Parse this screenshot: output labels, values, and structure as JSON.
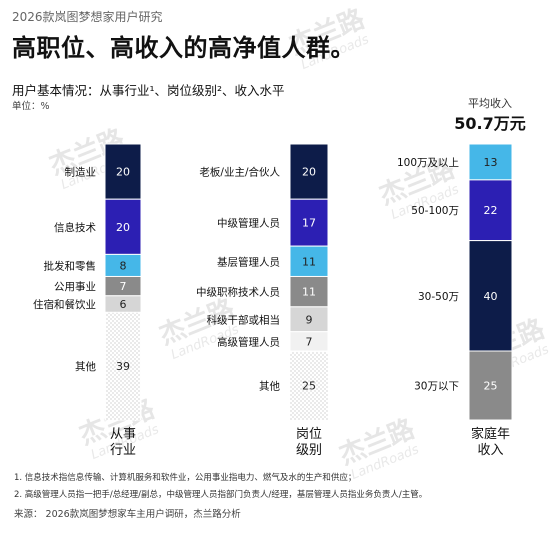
{
  "header": {
    "supertitle": "2026款岚图梦想家用户研究",
    "headline": "高职位、高收入的高净值人群。",
    "subtitle": "用户基本情况：从事行业¹、岗位级别²、收入水平",
    "unit": "单位：%"
  },
  "average": {
    "label": "平均收入",
    "value": "50.7万元"
  },
  "watermark": {
    "brand": "杰兰路",
    "sub": "LandRoads"
  },
  "colors": {
    "navy": "#0d1c49",
    "indigo": "#2c1fb3",
    "sky": "#45b7e8",
    "gray_dark": "#8a8a8a",
    "gray_light": "#d6d6d6",
    "gray_faint": "#f1f1f1",
    "dotted": "#ffffff"
  },
  "chart_data": [
    {
      "type": "bar",
      "stacked": true,
      "category": [
        "从事",
        "行业"
      ],
      "segments": [
        {
          "label": "制造业",
          "value": 20,
          "color": "navy"
        },
        {
          "label": "信息技术",
          "value": 20,
          "color": "indigo"
        },
        {
          "label": "批发和零售",
          "value": 8,
          "color": "sky"
        },
        {
          "label": "公用事业",
          "value": 7,
          "color": "gray_dark"
        },
        {
          "label": "住宿和餐饮业",
          "value": 6,
          "color": "gray_light"
        },
        {
          "label": "其他",
          "value": 39,
          "color": "dotted"
        }
      ]
    },
    {
      "type": "bar",
      "stacked": true,
      "category": [
        "岗位",
        "级别"
      ],
      "segments": [
        {
          "label": "老板/业主/合伙人",
          "value": 20,
          "color": "navy"
        },
        {
          "label": "中级管理人员",
          "value": 17,
          "color": "indigo"
        },
        {
          "label": "基层管理人员",
          "value": 11,
          "color": "sky"
        },
        {
          "label": "中级职称技术人员",
          "value": 11,
          "color": "gray_dark"
        },
        {
          "label": "科级干部或相当",
          "value": 9,
          "color": "gray_light"
        },
        {
          "label": "高级管理人员",
          "value": 7,
          "color": "gray_faint"
        },
        {
          "label": "其他",
          "value": 25,
          "color": "dotted"
        }
      ]
    },
    {
      "type": "bar",
      "stacked": true,
      "category": [
        "家庭年",
        "收入"
      ],
      "segments": [
        {
          "label": "100万及以上",
          "value": 13,
          "color": "sky"
        },
        {
          "label": "50-100万",
          "value": 22,
          "color": "indigo"
        },
        {
          "label": "30-50万",
          "value": 40,
          "color": "navy"
        },
        {
          "label": "30万以下",
          "value": 25,
          "color": "gray_dark"
        }
      ]
    }
  ],
  "footnotes": {
    "fn1": "1.   信息技术指信息传输、计算机服务和软件业，公用事业指电力、燃气及水的生产和供应；",
    "fn2": "2.   高级管理人员指一把手/总经理/副总，中级管理人员指部门负责人/经理，基层管理人员指业务负责人/主管。",
    "source": "来源：  2026款岚图梦想家车主用户调研，杰兰路分析"
  }
}
